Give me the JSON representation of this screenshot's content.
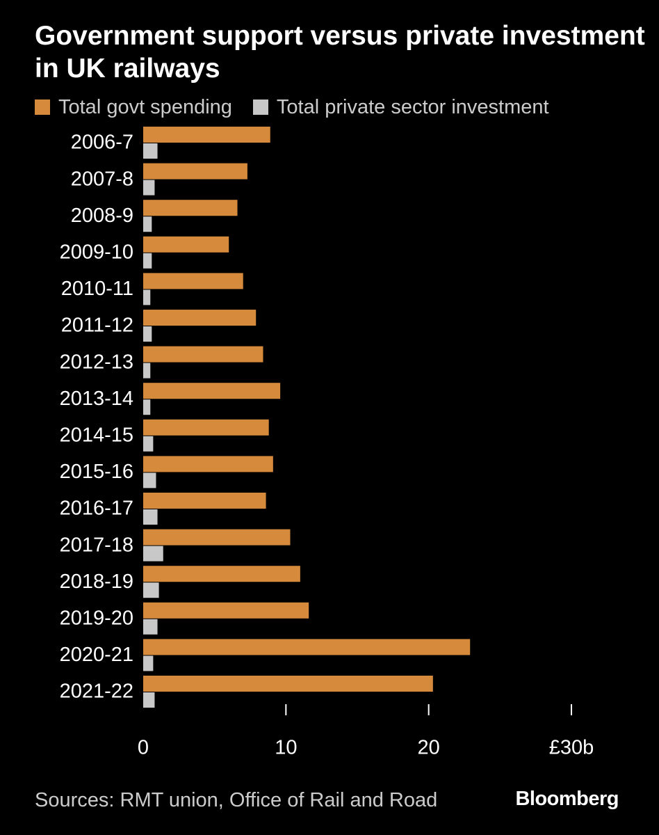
{
  "chart_data": {
    "type": "bar",
    "orientation": "horizontal",
    "title": "Government support versus private investment in UK railways",
    "categories": [
      "2006-7",
      "2007-8",
      "2008-9",
      "2009-10",
      "2010-11",
      "2011-12",
      "2012-13",
      "2013-14",
      "2014-15",
      "2015-16",
      "2016-17",
      "2017-18",
      "2018-19",
      "2019-20",
      "2020-21",
      "2021-22"
    ],
    "series": [
      {
        "name": "Total govt spending",
        "color": "#d68a3c",
        "values": [
          8.9,
          7.3,
          6.6,
          6.0,
          7.0,
          7.9,
          8.4,
          9.6,
          8.8,
          9.1,
          8.6,
          10.3,
          11.0,
          11.6,
          22.9,
          20.3
        ]
      },
      {
        "name": "Total private sector investment",
        "color": "#c8c8c8",
        "values": [
          1.0,
          0.8,
          0.6,
          0.6,
          0.5,
          0.6,
          0.5,
          0.5,
          0.7,
          0.9,
          1.0,
          1.4,
          1.1,
          1.0,
          0.7,
          0.8
        ]
      }
    ],
    "x_ticks": [
      {
        "value": 0,
        "label": "0"
      },
      {
        "value": 10,
        "label": "10"
      },
      {
        "value": 20,
        "label": "20"
      },
      {
        "value": 30,
        "label": "£30b"
      }
    ],
    "xlim": [
      0,
      30
    ],
    "grid": false,
    "legend_position": "top-left"
  },
  "source": "Sources: RMT union, Office of Rail and Road",
  "brand": "Bloomberg"
}
